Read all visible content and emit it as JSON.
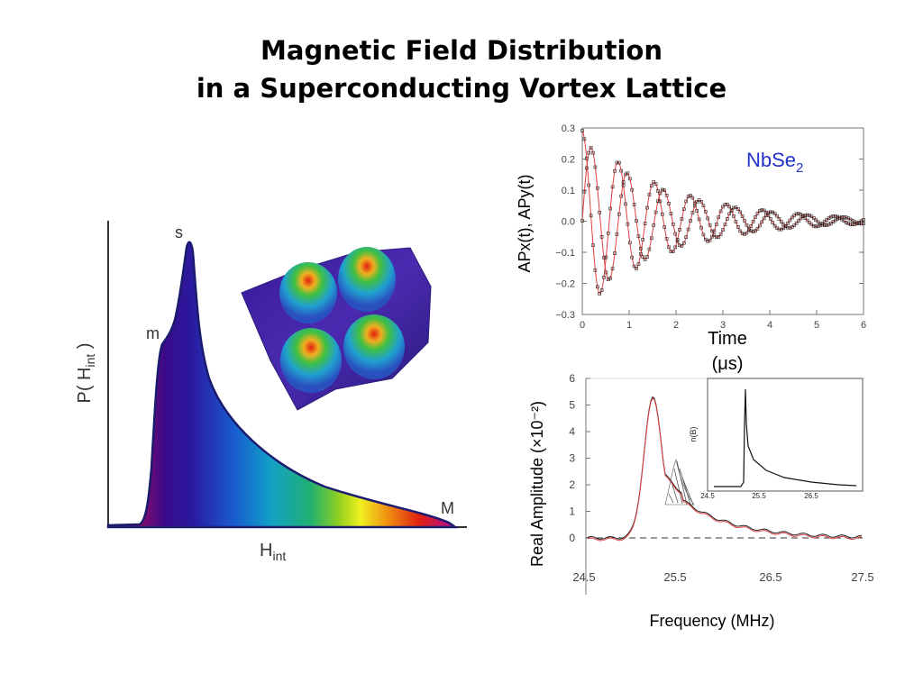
{
  "title": {
    "line1": "Magnetic Field Distribution",
    "line2": "in a Superconducting Vortex Lattice"
  },
  "distribution": {
    "y_label_main": "P( H",
    "y_label_sub": "int",
    "y_label_close": " )",
    "x_label_main": "H",
    "x_label_sub": "int",
    "peak_labels": {
      "m": "m",
      "s": "s",
      "M": "M"
    }
  },
  "time_plot": {
    "sample_main": "NbSe",
    "sample_sub": "2",
    "y_label": "APx(t), APy(t)",
    "x_label_line1": "Time",
    "x_label_line2": "(μs)",
    "y_ticks": [
      "0.3",
      "0.2",
      "0.1",
      "0.0",
      "−0.1",
      "−0.2",
      "−0.3"
    ],
    "x_ticks": [
      "0",
      "1",
      "2",
      "3",
      "4",
      "5",
      "6"
    ]
  },
  "freq_plot": {
    "y_label": "Real Amplitude (×10⁻²)",
    "x_label": "Frequency (MHz)",
    "y_ticks": [
      "6",
      "5",
      "4",
      "3",
      "2",
      "1",
      "0"
    ],
    "x_ticks": [
      "24.5",
      "25.5",
      "26.5",
      "27.5"
    ],
    "inset": {
      "y_label": "n(B)",
      "x_ticks": [
        "24.5",
        "25.5",
        "26.5"
      ]
    }
  },
  "colors": {
    "fit_line": "#e04040",
    "sample_label": "#2233cc",
    "curve_outline": "#1a1a6e"
  }
}
